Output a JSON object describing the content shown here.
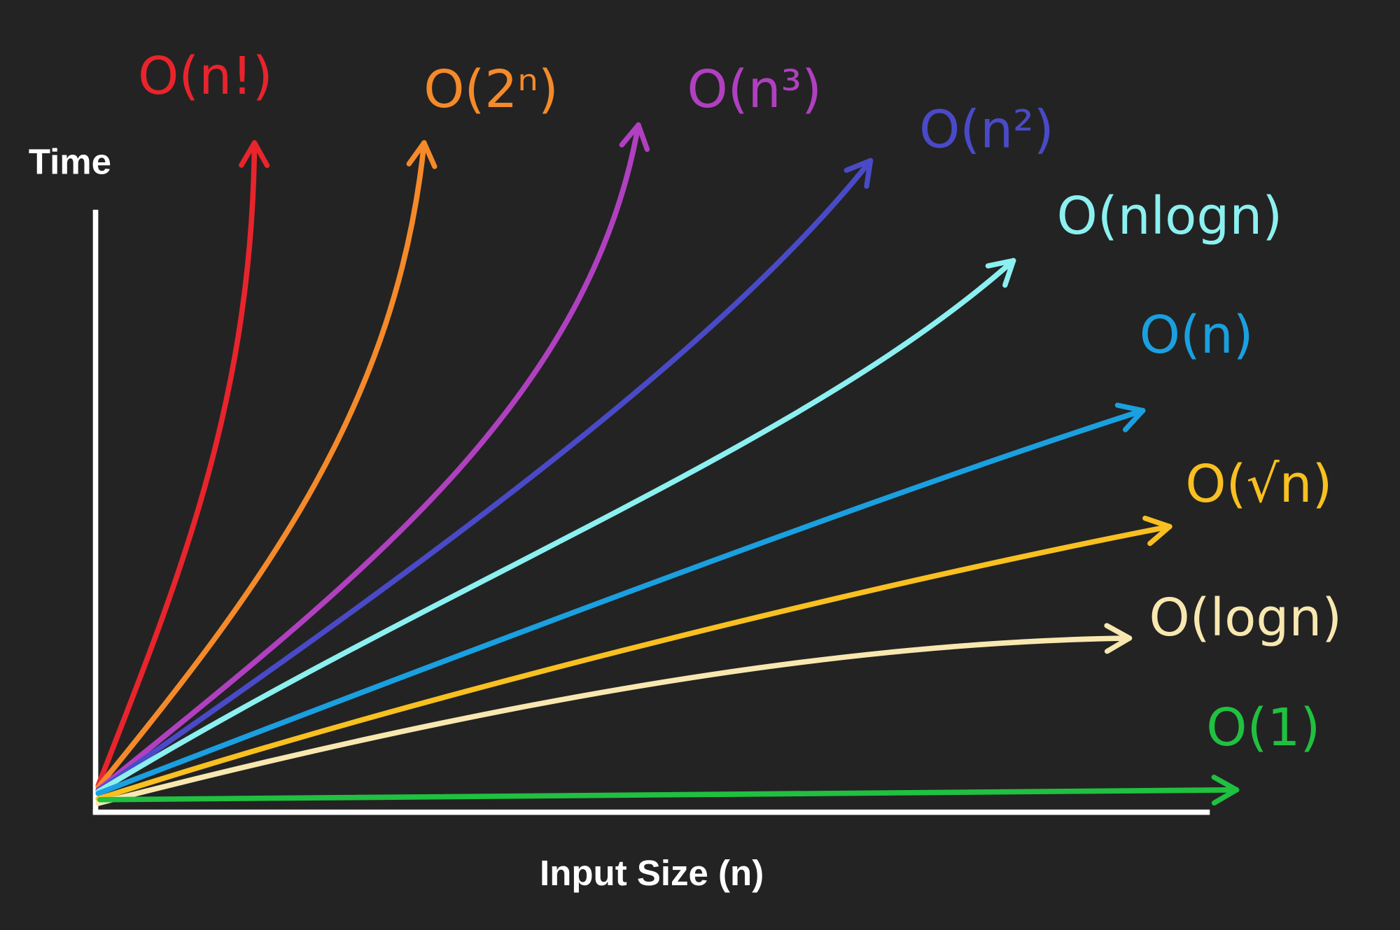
{
  "axes": {
    "y_label": "Time",
    "x_label": "Input Size (n)"
  },
  "curves": [
    {
      "label": "O(n!)",
      "color": "#e8242c"
    },
    {
      "label": "O(2ⁿ)",
      "color": "#f58a2a"
    },
    {
      "label": "O(n³)",
      "color": "#b040c0"
    },
    {
      "label": "O(n²)",
      "color": "#4a4ac8"
    },
    {
      "label": "O(nlogn)",
      "color": "#8cf0f0"
    },
    {
      "label": "O(n)",
      "color": "#1aa0e0"
    },
    {
      "label": "O(√n)",
      "color": "#f8c020"
    },
    {
      "label": "O(logn)",
      "color": "#f8e8b0"
    },
    {
      "label": "O(1)",
      "color": "#20c040"
    }
  ]
}
